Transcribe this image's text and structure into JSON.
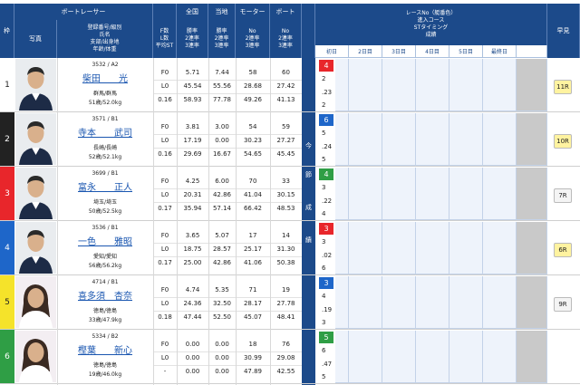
{
  "header": {
    "waku": "枠",
    "photo": "写真",
    "boat_racer": "ボートレーサー",
    "reg_lines": [
      "登録番号/級別",
      "氏名",
      "支部/出身地",
      "年齢/体重"
    ],
    "f_lines": [
      "F数",
      "L数",
      "平均ST"
    ],
    "zenkoku": "全国",
    "zenkoku_lines": [
      "勝率",
      "2連率",
      "3連率"
    ],
    "touchi": "当地",
    "touchi_lines": [
      "勝率",
      "2連率",
      "3連率"
    ],
    "motor": "モーター",
    "motor_lines": [
      "No",
      "2連率",
      "3連率"
    ],
    "boat": "ボート",
    "boat_lines": [
      "No",
      "2連率",
      "3連率"
    ],
    "race_lines": [
      "レースNo（艇番色）",
      "進入コース",
      "STタイミング",
      "成績"
    ],
    "days": [
      "初日",
      "2日目",
      "3日目",
      "4日目",
      "5日目",
      "最終日"
    ],
    "early": "早見"
  },
  "mid_label": [
    "今",
    "節",
    "成",
    "績"
  ],
  "racers": [
    {
      "frame": "1",
      "frame_bg": "#ffffff",
      "frame_fg": "#222222",
      "id_class": "3532 / A2",
      "name": "柴田　　光",
      "branch": "群馬/群馬",
      "age_weight": "51歳/52.0kg",
      "f": "F0",
      "l": "L0",
      "st": "0.16",
      "nat": [
        "5.71",
        "45.54",
        "58.93"
      ],
      "loc": [
        "7.44",
        "55.56",
        "77.78"
      ],
      "motor": [
        "58",
        "28.68",
        "49.26"
      ],
      "boat": [
        "60",
        "27.42",
        "41.13"
      ],
      "race_lane": "4",
      "race_lane_color": "#e8262b",
      "race_vals": [
        "2",
        ".23",
        "2"
      ],
      "early": "11R",
      "early_bg": "#fff3a0"
    },
    {
      "frame": "2",
      "frame_bg": "#222222",
      "frame_fg": "#ffffff",
      "id_class": "3571 / B1",
      "name": "寺本　　武司",
      "branch": "長崎/長崎",
      "age_weight": "52歳/52.1kg",
      "f": "F0",
      "l": "L0",
      "st": "0.16",
      "nat": [
        "3.81",
        "17.19",
        "29.69"
      ],
      "loc": [
        "3.00",
        "0.00",
        "16.67"
      ],
      "motor": [
        "54",
        "30.23",
        "54.65"
      ],
      "boat": [
        "59",
        "27.27",
        "45.45"
      ],
      "race_lane": "6",
      "race_lane_color": "#1e66c9",
      "race_vals": [
        "5",
        ".24",
        "5"
      ],
      "early": "10R",
      "early_bg": "#fff3a0"
    },
    {
      "frame": "3",
      "frame_bg": "#e8262b",
      "frame_fg": "#ffffff",
      "id_class": "3699 / B1",
      "name": "富永　　正人",
      "branch": "埼玉/埼玉",
      "age_weight": "50歳/52.5kg",
      "f": "F0",
      "l": "L0",
      "st": "0.17",
      "nat": [
        "4.25",
        "20.31",
        "35.94"
      ],
      "loc": [
        "6.00",
        "42.86",
        "57.14"
      ],
      "motor": [
        "70",
        "41.04",
        "66.42"
      ],
      "boat": [
        "33",
        "30.15",
        "48.53"
      ],
      "race_lane": "4",
      "race_lane_color": "#2f9e45",
      "race_vals": [
        "3",
        ".22",
        "4"
      ],
      "early": "7R",
      "early_bg": "#f4f4f4"
    },
    {
      "frame": "4",
      "frame_bg": "#1e66c9",
      "frame_fg": "#ffffff",
      "id_class": "3536 / B1",
      "name": "一色　　雅昭",
      "branch": "愛知/愛知",
      "age_weight": "56歳/56.2kg",
      "f": "F0",
      "l": "L0",
      "st": "0.17",
      "nat": [
        "3.65",
        "18.75",
        "25.00"
      ],
      "loc": [
        "5.07",
        "28.57",
        "42.86"
      ],
      "motor": [
        "17",
        "25.17",
        "41.06"
      ],
      "boat": [
        "14",
        "31.30",
        "50.38"
      ],
      "race_lane": "3",
      "race_lane_color": "#e8262b",
      "race_vals": [
        "3",
        ".02",
        "6"
      ],
      "early": "6R",
      "early_bg": "#fff3a0"
    },
    {
      "frame": "5",
      "frame_bg": "#f5e32a",
      "frame_fg": "#222222",
      "id_class": "4714 / B1",
      "name": "喜多須　杏奈",
      "branch": "徳島/徳島",
      "age_weight": "33歳/47.9kg",
      "f": "F0",
      "l": "L0",
      "st": "0.18",
      "nat": [
        "4.74",
        "24.36",
        "47.44"
      ],
      "loc": [
        "5.35",
        "32.50",
        "52.50"
      ],
      "motor": [
        "71",
        "28.17",
        "45.07"
      ],
      "boat": [
        "19",
        "27.78",
        "48.41"
      ],
      "race_lane": "3",
      "race_lane_color": "#1e66c9",
      "race_vals": [
        "4",
        ".19",
        "3"
      ],
      "early": "9R",
      "early_bg": "#f4f4f4"
    },
    {
      "frame": "6",
      "frame_bg": "#2f9e45",
      "frame_fg": "#ffffff",
      "id_class": "5334 / B2",
      "name": "樫葉　　新心",
      "branch": "徳島/徳島",
      "age_weight": "19歳/46.0kg",
      "f": "F0",
      "l": "L0",
      "st": "-",
      "nat": [
        "0.00",
        "0.00",
        "0.00"
      ],
      "loc": [
        "0.00",
        "0.00",
        "0.00"
      ],
      "motor": [
        "18",
        "30.99",
        "47.89"
      ],
      "boat": [
        "76",
        "29.08",
        "42.55"
      ],
      "race_lane": "5",
      "race_lane_color": "#2f9e45",
      "race_vals": [
        "6",
        ".47",
        "5"
      ],
      "early": "",
      "early_bg": "#ffffff"
    }
  ]
}
